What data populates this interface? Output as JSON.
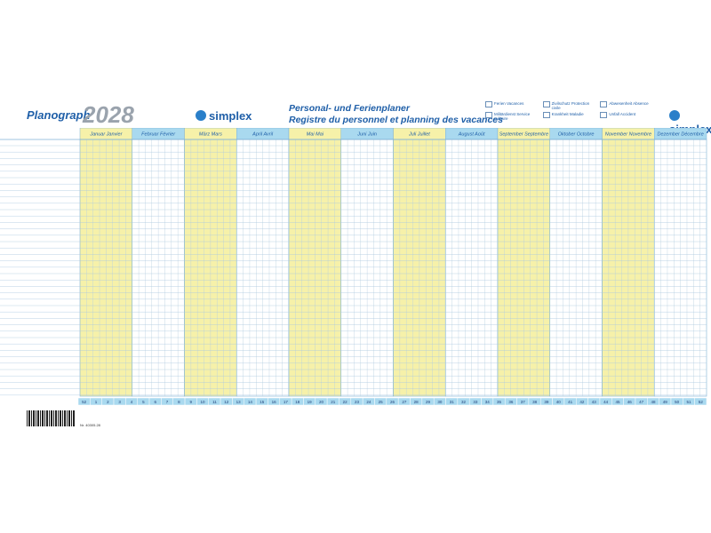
{
  "header": {
    "brand": "Planograph",
    "year": "2028",
    "logo": "simplex",
    "title_de": "Personal- und Ferienplaner",
    "title_fr": "Registre du personnel et planning des vacances"
  },
  "legend": [
    "Ferien Vacances",
    "Zivilschutz Protection civile",
    "Abwesenheit Absence",
    "Militärdienst Service militaire",
    "Krankheit Maladie",
    "Unfall Accident"
  ],
  "months": [
    "Januar Janvier",
    "Februar Février",
    "März Mars",
    "April Avril",
    "Mai Mai",
    "Juni Juin",
    "Juli Juillet",
    "August Août",
    "September Septembre",
    "Oktober Octobre",
    "November Novembre",
    "Dezember Décembre"
  ],
  "weeks": [
    52,
    1,
    2,
    3,
    4,
    5,
    6,
    7,
    8,
    9,
    10,
    11,
    12,
    13,
    14,
    15,
    16,
    17,
    18,
    19,
    20,
    21,
    22,
    23,
    24,
    25,
    26,
    27,
    28,
    29,
    30,
    31,
    32,
    33,
    34,
    35,
    36,
    37,
    38,
    39,
    40,
    41,
    42,
    43,
    44,
    45,
    46,
    47,
    48,
    49,
    50,
    51,
    52
  ],
  "footer": {
    "article": "Nr. 40305.28"
  }
}
